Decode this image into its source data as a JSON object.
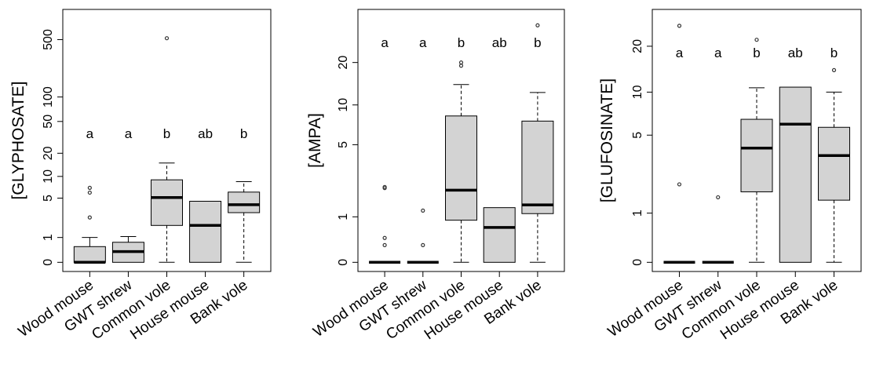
{
  "colors": {
    "box_fill": "#d3d3d3",
    "stroke": "#000000",
    "background": "#ffffff"
  },
  "chart_data": [
    {
      "type": "boxplot",
      "ylabel": "[GLYPHOSATE]",
      "scale": "log1p",
      "yticks": [
        "0",
        "1",
        "5",
        "10",
        "20",
        "50",
        "100",
        "500"
      ],
      "ylim": [
        0,
        900
      ],
      "categories": [
        "Wood mouse",
        "GWT shrew",
        "Common vole",
        "House mouse",
        "Bank vole"
      ],
      "letters": [
        "a",
        "a",
        "b",
        "ab",
        "b"
      ],
      "boxes": [
        {
          "category": "Wood mouse",
          "whisker_low": 0,
          "q1": 0,
          "median": 0,
          "q3": 0.55,
          "whisker_high": 1.0,
          "whisker_style": "solid",
          "outliers": [
            2.5,
            6,
            7
          ]
        },
        {
          "category": "GWT shrew",
          "whisker_low": 0,
          "q1": 0,
          "median": 0.35,
          "q3": 0.75,
          "whisker_high": 1.05,
          "whisker_style": "solid",
          "outliers": []
        },
        {
          "category": "Common vole",
          "whisker_low": 0,
          "q1": 1.8,
          "median": 5.1,
          "q3": 9.0,
          "whisker_high": 15,
          "whisker_style": "dashed",
          "outliers": [
            520
          ]
        },
        {
          "category": "House mouse",
          "whisker_low": 0,
          "q1": 0,
          "median": 1.8,
          "q3": 4.5,
          "whisker_high": 4.5,
          "whisker_style": "solid",
          "outliers": []
        },
        {
          "category": "Bank vole",
          "whisker_low": 0,
          "q1": 3.0,
          "median": 4.0,
          "q3": 6.1,
          "whisker_high": 8.5,
          "whisker_style": "dashed",
          "outliers": []
        }
      ]
    },
    {
      "type": "boxplot",
      "ylabel": "[AMPA]",
      "scale": "log1p",
      "yticks": [
        "0",
        "1",
        "5",
        "10",
        "20"
      ],
      "ylim": [
        0,
        40
      ],
      "categories": [
        "Wood mouse",
        "GWT shrew",
        "Common vole",
        "House mouse",
        "Bank vole"
      ],
      "letters": [
        "a",
        "a",
        "b",
        "ab",
        "b"
      ],
      "boxes": [
        {
          "category": "Wood mouse",
          "whisker_low": 0,
          "q1": 0,
          "median": 0,
          "q3": 0,
          "whisker_high": 0,
          "whisker_style": "solid",
          "outliers": [
            0.3,
            0.45,
            2.1,
            2.15
          ]
        },
        {
          "category": "GWT shrew",
          "whisker_low": 0,
          "q1": 0,
          "median": 0,
          "q3": 0,
          "whisker_high": 0,
          "whisker_style": "solid",
          "outliers": [
            0.3,
            1.2
          ]
        },
        {
          "category": "Common vole",
          "whisker_low": 0,
          "q1": 0.9,
          "median": 2.0,
          "q3": 8.3,
          "whisker_high": 14,
          "whisker_style": "dashed",
          "outliers": [
            19,
            20
          ]
        },
        {
          "category": "House mouse",
          "whisker_low": 0,
          "q1": 0,
          "median": 0.7,
          "q3": 1.3,
          "whisker_high": 1.3,
          "whisker_style": "solid",
          "outliers": []
        },
        {
          "category": "Bank vole",
          "whisker_low": 0,
          "q1": 1.1,
          "median": 1.4,
          "q3": 7.6,
          "whisker_high": 12.3,
          "whisker_style": "dashed",
          "outliers": [
            36
          ]
        }
      ]
    },
    {
      "type": "boxplot",
      "ylabel": "[GLUFOSINATE]",
      "scale": "log1p",
      "yticks": [
        "0",
        "1",
        "5",
        "10",
        "20"
      ],
      "ylim": [
        0,
        30
      ],
      "categories": [
        "Wood mouse",
        "GWT shrew",
        "Common vole",
        "House mouse",
        "Bank vole"
      ],
      "letters": [
        "a",
        "a",
        "b",
        "ab",
        "b"
      ],
      "boxes": [
        {
          "category": "Wood mouse",
          "whisker_low": 0,
          "q1": 0,
          "median": 0,
          "q3": 0,
          "whisker_high": 0,
          "whisker_style": "solid",
          "outliers": [
            2.0,
            27
          ]
        },
        {
          "category": "GWT shrew",
          "whisker_low": 0,
          "q1": 0,
          "median": 0,
          "q3": 0,
          "whisker_high": 0,
          "whisker_style": "solid",
          "outliers": [
            1.5
          ]
        },
        {
          "category": "Common vole",
          "whisker_low": 0,
          "q1": 1.7,
          "median": 4.0,
          "q3": 6.5,
          "whisker_high": 10.7,
          "whisker_style": "dashed",
          "outliers": [
            22
          ]
        },
        {
          "category": "House mouse",
          "whisker_low": 0,
          "q1": 0,
          "median": 6.0,
          "q3": 10.8,
          "whisker_high": 10.8,
          "whisker_style": "solid",
          "outliers": []
        },
        {
          "category": "Bank vole",
          "whisker_low": 0,
          "q1": 1.4,
          "median": 3.5,
          "q3": 5.7,
          "whisker_high": 10,
          "whisker_style": "dashed",
          "outliers": [
            14
          ]
        }
      ]
    }
  ]
}
